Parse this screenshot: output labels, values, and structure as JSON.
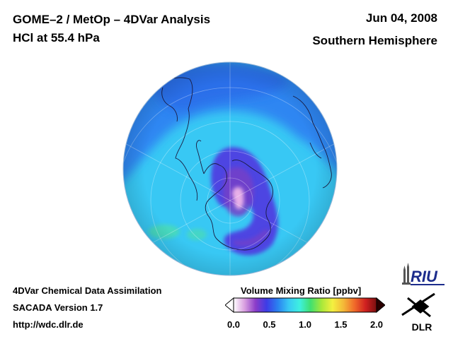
{
  "header": {
    "title_line1": "GOME–2 / MetOp – 4DVar Analysis",
    "title_line2": "HCl at 55.4 hPa",
    "date": "Jun 04, 2008",
    "hemisphere": "Southern Hemisphere"
  },
  "footer": {
    "line1": "4DVar Chemical Data Assimilation",
    "line2": "SACADA Version 1.7",
    "line3": "http://wdc.dlr.de"
  },
  "colorbar": {
    "title": "Volume Mixing Ratio [ppbv]",
    "ticks": [
      {
        "label": "0.0",
        "value": 0.0
      },
      {
        "label": "0.5",
        "value": 0.5
      },
      {
        "label": "1.0",
        "value": 1.0
      },
      {
        "label": "1.5",
        "value": 1.5
      },
      {
        "label": "2.0",
        "value": 2.0
      }
    ],
    "range": [
      0.0,
      2.0
    ],
    "colors": [
      "#ffffff",
      "#d9a0e0",
      "#8a3cc8",
      "#3d3ce6",
      "#2a80f0",
      "#38c8f4",
      "#3ef0e0",
      "#40e070",
      "#a8e83a",
      "#f4f040",
      "#f4b838",
      "#f06a2a",
      "#d02020",
      "#7a0f0f"
    ]
  },
  "logos": {
    "riu": "RIU",
    "dlr": "DLR"
  },
  "map": {
    "projection": "orthographic south polar",
    "colors": {
      "background": "#38c8f4",
      "ocean_band": "#2a7cf0",
      "vortex": "#5a3cd8",
      "vortex_core": "#7a3cc8",
      "pole_low": "#e8b0e8"
    }
  }
}
